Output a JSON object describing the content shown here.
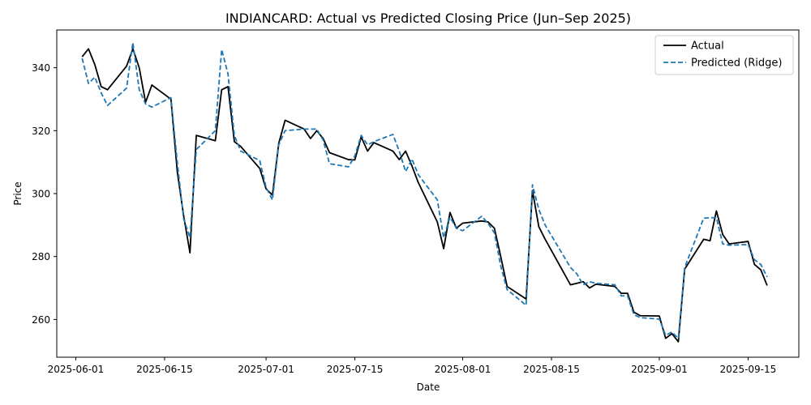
{
  "chart_data": {
    "type": "line",
    "title": "INDIANCARD: Actual vs Predicted Closing Price (Jun–Sep 2025)",
    "xlabel": "Date",
    "ylabel": "Price",
    "xlim": [
      "2025-05-29",
      "2025-09-23"
    ],
    "ylim": [
      248,
      352
    ],
    "x_ticks": [
      "2025-06-01",
      "2025-06-15",
      "2025-07-01",
      "2025-07-15",
      "2025-08-01",
      "2025-08-15",
      "2025-09-01",
      "2025-09-15"
    ],
    "y_ticks": [
      260,
      280,
      300,
      320,
      340
    ],
    "grid": false,
    "legend_position": "upper right",
    "colors": {
      "Actual": "#000000",
      "Predicted (Ridge)": "#1f77b4"
    },
    "x": [
      "2025-06-02",
      "2025-06-03",
      "2025-06-04",
      "2025-06-05",
      "2025-06-06",
      "2025-06-09",
      "2025-06-10",
      "2025-06-11",
      "2025-06-12",
      "2025-06-13",
      "2025-06-16",
      "2025-06-17",
      "2025-06-18",
      "2025-06-19",
      "2025-06-20",
      "2025-06-23",
      "2025-06-24",
      "2025-06-25",
      "2025-06-26",
      "2025-06-27",
      "2025-06-30",
      "2025-07-01",
      "2025-07-02",
      "2025-07-03",
      "2025-07-04",
      "2025-07-07",
      "2025-07-08",
      "2025-07-09",
      "2025-07-10",
      "2025-07-11",
      "2025-07-14",
      "2025-07-15",
      "2025-07-16",
      "2025-07-17",
      "2025-07-18",
      "2025-07-21",
      "2025-07-22",
      "2025-07-23",
      "2025-07-24",
      "2025-07-25",
      "2025-07-28",
      "2025-07-29",
      "2025-07-30",
      "2025-07-31",
      "2025-08-01",
      "2025-08-04",
      "2025-08-05",
      "2025-08-06",
      "2025-08-07",
      "2025-08-08",
      "2025-08-11",
      "2025-08-12",
      "2025-08-13",
      "2025-08-14",
      "2025-08-18",
      "2025-08-19",
      "2025-08-20",
      "2025-08-21",
      "2025-08-22",
      "2025-08-25",
      "2025-08-26",
      "2025-08-27",
      "2025-08-28",
      "2025-08-29",
      "2025-09-01",
      "2025-09-02",
      "2025-09-03",
      "2025-09-04",
      "2025-09-05",
      "2025-09-08",
      "2025-09-09",
      "2025-09-10",
      "2025-09-11",
      "2025-09-12",
      "2025-09-15",
      "2025-09-16",
      "2025-09-17",
      "2025-09-18"
    ],
    "series": [
      {
        "name": "Actual",
        "style": "solid",
        "values": [
          343.5,
          346,
          341,
          334,
          333,
          340.5,
          346,
          340,
          329,
          334.5,
          330,
          307,
          293,
          281.2,
          318.5,
          316.8,
          333,
          334,
          316.5,
          315,
          308,
          301.5,
          299.5,
          316,
          323.3,
          320.5,
          317.5,
          320,
          317.5,
          313,
          310.8,
          310.7,
          318,
          313.5,
          316.2,
          313.5,
          310.8,
          313.5,
          308.8,
          303.5,
          291,
          282.5,
          294,
          289,
          290.6,
          291.3,
          291,
          289,
          280,
          270.5,
          266.5,
          301,
          289.5,
          285.5,
          271,
          271.5,
          272,
          270,
          271.2,
          270.5,
          268.3,
          268.3,
          262.3,
          261.2,
          261.1,
          254,
          255.5,
          252.9,
          276,
          285.5,
          285,
          294.5,
          287,
          284,
          284.8,
          277.5,
          275.8,
          270.8
        ]
      },
      {
        "name": "Predicted (Ridge)",
        "style": "dashed",
        "values": [
          343,
          335,
          337,
          332,
          328,
          333.5,
          348,
          333,
          328.5,
          327.5,
          330.5,
          310,
          292,
          286,
          314,
          320,
          345.8,
          338,
          318.5,
          313.5,
          310.5,
          302,
          298,
          315.5,
          320,
          320.5,
          320.5,
          320.5,
          317,
          309.5,
          308.5,
          312,
          318.5,
          315.5,
          316.5,
          318.8,
          313.5,
          307,
          311,
          306,
          298,
          286,
          292.5,
          289,
          288.2,
          292.8,
          290.5,
          287.5,
          277,
          269.5,
          264.5,
          302.8,
          295,
          290,
          276.5,
          274.5,
          271,
          272,
          271.5,
          271,
          267.5,
          267.5,
          261.5,
          260.6,
          260.1,
          255,
          256,
          254,
          276.5,
          292.2,
          292.3,
          292.4,
          284,
          283.6,
          283.8,
          279,
          277.5,
          273.5
        ]
      }
    ]
  }
}
